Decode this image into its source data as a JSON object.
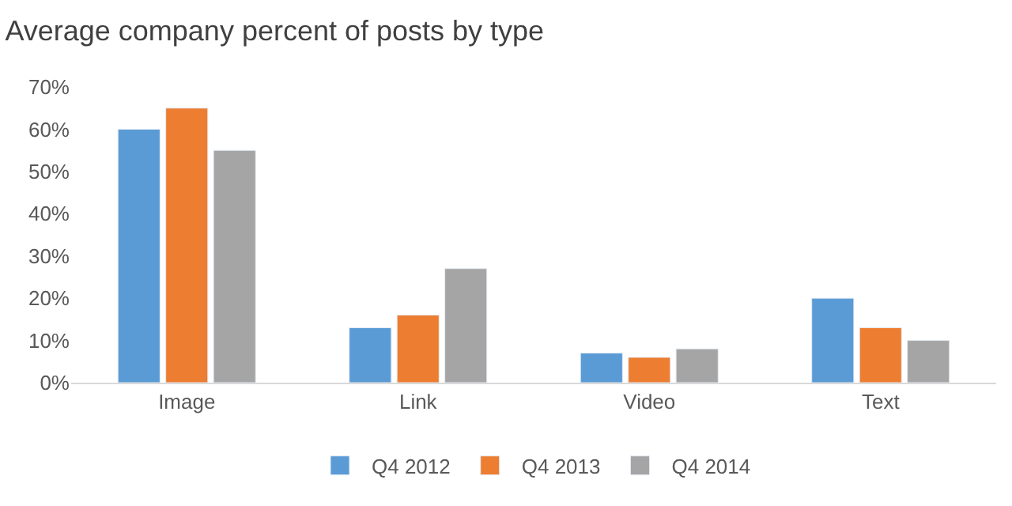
{
  "chart_data": {
    "type": "bar",
    "title": "Average company percent of posts by type",
    "categories": [
      "Image",
      "Link",
      "Video",
      "Text"
    ],
    "series": [
      {
        "name": "Q4 2012",
        "color": "#5b9bd5",
        "values": [
          60,
          13,
          7,
          20
        ]
      },
      {
        "name": "Q4 2013",
        "color": "#ed7d31",
        "values": [
          65,
          16,
          6,
          13
        ]
      },
      {
        "name": "Q4 2014",
        "color": "#a5a5a5",
        "values": [
          55,
          27,
          8,
          10
        ]
      }
    ],
    "ylim": [
      0,
      70
    ],
    "yticks": [
      {
        "value": 0,
        "label": "0%"
      },
      {
        "value": 10,
        "label": "10%"
      },
      {
        "value": 20,
        "label": "20%"
      },
      {
        "value": 30,
        "label": "30%"
      },
      {
        "value": 40,
        "label": "40%"
      },
      {
        "value": 50,
        "label": "50%"
      },
      {
        "value": 60,
        "label": "60%"
      },
      {
        "value": 70,
        "label": "70%"
      }
    ],
    "legend": "bottom"
  }
}
